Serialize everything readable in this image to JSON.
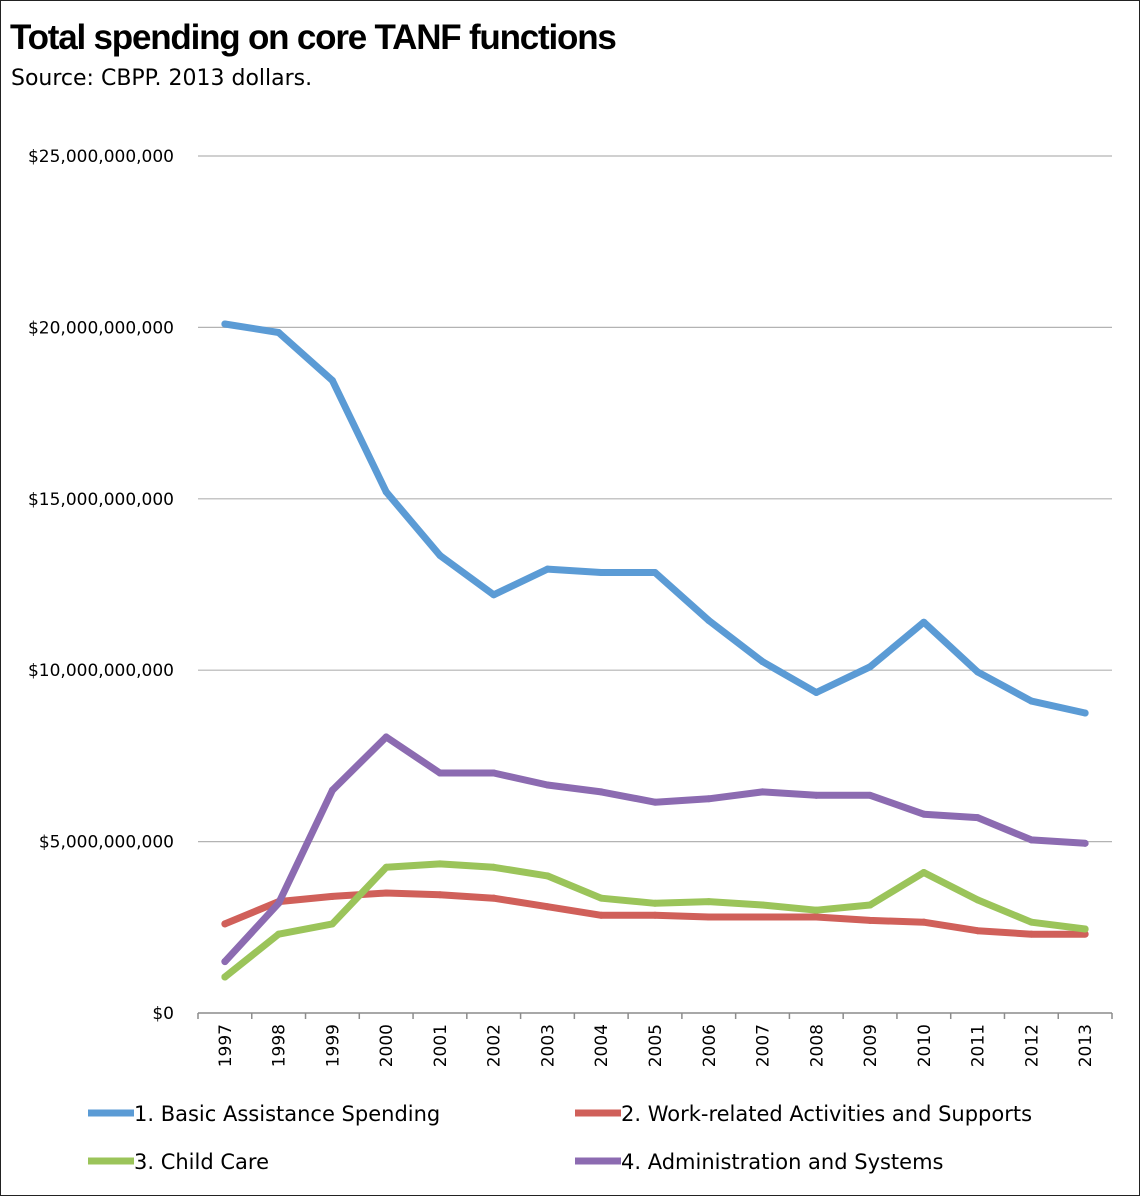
{
  "header": {
    "title": "Total spending on core TANF functions",
    "subtitle": "Source: CBPP. 2013 dollars."
  },
  "chart_data": {
    "type": "line",
    "title": "Total spending on core TANF functions",
    "subtitle": "Source: CBPP. 2013 dollars.",
    "xlabel": "",
    "ylabel": "",
    "ylim": [
      0,
      25000000000
    ],
    "grid": true,
    "legend_position": "bottom",
    "y_ticks": [
      {
        "value": 0,
        "label": "$0"
      },
      {
        "value": 5000000000,
        "label": "$5,000,000,000"
      },
      {
        "value": 10000000000,
        "label": "$10,000,000,000"
      },
      {
        "value": 15000000000,
        "label": "$15,000,000,000"
      },
      {
        "value": 20000000000,
        "label": "$20,000,000,000"
      },
      {
        "value": 25000000000,
        "label": "$25,000,000,000"
      }
    ],
    "categories": [
      "1997",
      "1998",
      "1999",
      "2000",
      "2001",
      "2002",
      "2003",
      "2004",
      "2005",
      "2006",
      "2007",
      "2008",
      "2009",
      "2010",
      "2011",
      "2012",
      "2013"
    ],
    "series": [
      {
        "name": "1. Basic Assistance Spending",
        "color": "#5b9bd5",
        "values": [
          20100000000,
          19850000000,
          18450000000,
          15200000000,
          13350000000,
          12200000000,
          12950000000,
          12850000000,
          12850000000,
          11450000000,
          10250000000,
          9350000000,
          10100000000,
          11400000000,
          9950000000,
          9100000000,
          8750000000
        ]
      },
      {
        "name": "2. Work-related Activities and Supports",
        "color": "#d0605a",
        "values": [
          2600000000,
          3250000000,
          3400000000,
          3500000000,
          3450000000,
          3350000000,
          3100000000,
          2850000000,
          2850000000,
          2800000000,
          2800000000,
          2800000000,
          2700000000,
          2650000000,
          2400000000,
          2300000000,
          2300000000
        ]
      },
      {
        "name": "3. Child Care",
        "color": "#9bc45a",
        "values": [
          1050000000,
          2300000000,
          2600000000,
          4250000000,
          4350000000,
          4250000000,
          4000000000,
          3350000000,
          3200000000,
          3250000000,
          3150000000,
          3000000000,
          3150000000,
          4100000000,
          3300000000,
          2650000000,
          2450000000
        ]
      },
      {
        "name": "4. Administration and Systems",
        "color": "#8c6bb1",
        "values": [
          1500000000,
          3200000000,
          6500000000,
          8050000000,
          7000000000,
          7000000000,
          6650000000,
          6450000000,
          6150000000,
          6250000000,
          6450000000,
          6350000000,
          6350000000,
          5800000000,
          5700000000,
          5050000000,
          4950000000
        ]
      }
    ]
  }
}
